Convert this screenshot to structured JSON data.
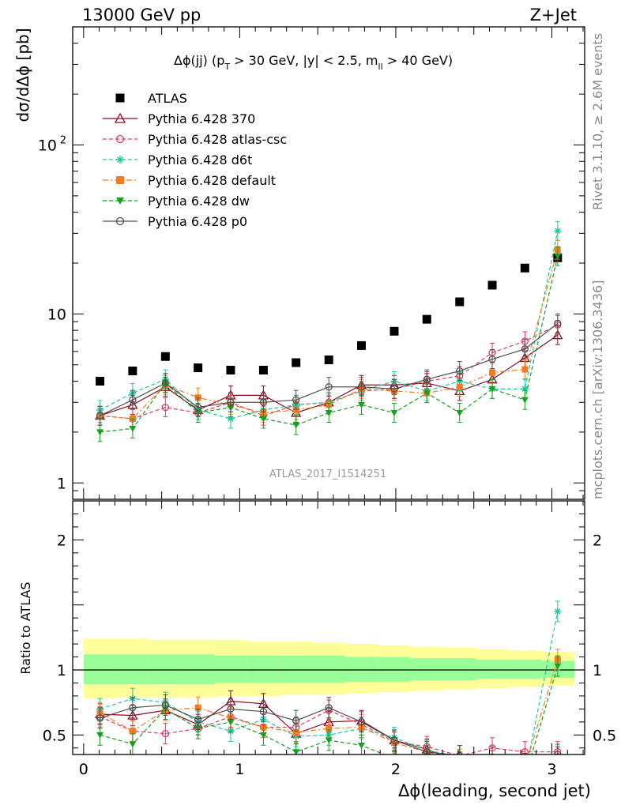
{
  "header": {
    "left": "13000 GeV pp",
    "right": "Z+Jet"
  },
  "side_text": {
    "rivet": "Rivet 3.1.10, ≥ 2.6M events",
    "mcplots": "mcplots.cern.ch [arXiv:1306.3436]"
  },
  "chart_data": {
    "type": "scatter",
    "title_parts": {
      "a": "Δϕ(jj) (p",
      "a_sub": "T",
      "b": " > 30 GeV, |y| < 2.5, m",
      "b_sub": "ll",
      "c": " > 40 GeV)"
    },
    "watermark": "ATLAS_2017_I1514251",
    "xlabel": "Δϕ(leading, second jet)",
    "ylabel_main": "dσ/dΔϕ [pb]",
    "ylabel_ratio": "Ratio to ATLAS",
    "xlim": [
      -0.07,
      3.21
    ],
    "ylim_main": [
      0.8,
      500
    ],
    "ylim_ratio": [
      0.35,
      2.3
    ],
    "log_y_main": true,
    "x_ticks": [
      "0",
      "1",
      "2",
      "3"
    ],
    "y_ticks_main": [
      {
        "value": 1,
        "label": "1"
      },
      {
        "value": 10,
        "label": "10"
      },
      {
        "value": 100,
        "label": "10",
        "sup": "2"
      }
    ],
    "y_ticks_ratio": [
      {
        "value": 0.5,
        "label": "0.5"
      },
      {
        "value": 1,
        "label": "1"
      },
      {
        "value": 2,
        "label": "2"
      }
    ],
    "x": [
      0.105,
      0.314,
      0.524,
      0.733,
      0.942,
      1.152,
      1.361,
      1.571,
      1.78,
      1.99,
      2.199,
      2.409,
      2.618,
      2.827,
      3.037
    ],
    "bin_edges": [
      0,
      0.209,
      0.419,
      0.628,
      0.838,
      1.047,
      1.257,
      1.466,
      1.676,
      1.885,
      2.094,
      2.304,
      2.513,
      2.723,
      2.932,
      3.1416
    ],
    "legend": [
      {
        "label": "ATLAS",
        "series": 0
      },
      {
        "label": "Pythia 6.428 370",
        "series": 1
      },
      {
        "label": "Pythia 6.428 atlas-csc",
        "series": 2
      },
      {
        "label": "Pythia 6.428 d6t",
        "series": 3
      },
      {
        "label": "Pythia 6.428 default",
        "series": 4
      },
      {
        "label": "Pythia 6.428 dw",
        "series": 5
      },
      {
        "label": "Pythia 6.428 p0",
        "series": 6
      }
    ],
    "series": [
      {
        "name": "ATLAS",
        "color": "#000000",
        "marker": "square",
        "line": "none",
        "values": [
          4.0,
          4.6,
          5.6,
          4.8,
          4.65,
          4.65,
          5.15,
          5.35,
          6.5,
          7.9,
          9.3,
          11.8,
          14.8,
          18.7,
          21.5
        ],
        "ratio": [
          1,
          1,
          1,
          1,
          1,
          1,
          1,
          1,
          1,
          1,
          1,
          1,
          1,
          1,
          1
        ]
      },
      {
        "name": "Pythia 6.428 370",
        "color": "#8b0a1e",
        "marker": "triangle-open",
        "line": "solid",
        "values": [
          2.5,
          2.9,
          3.7,
          2.7,
          3.3,
          3.3,
          2.6,
          3.0,
          3.8,
          3.8,
          3.9,
          3.5,
          4.1,
          5.5,
          7.5
        ],
        "ratio": [
          0.66,
          0.65,
          0.69,
          0.58,
          0.76,
          0.74,
          0.51,
          0.6,
          0.61,
          0.46,
          0.39,
          0.29,
          0.26,
          0.28,
          0.33
        ]
      },
      {
        "name": "Pythia 6.428 atlas-csc",
        "color": "#e8385f",
        "marker": "circle-open",
        "line": "dashed",
        "values": [
          2.5,
          2.4,
          2.8,
          2.6,
          3.0,
          2.5,
          2.9,
          3.0,
          3.5,
          3.6,
          4.0,
          4.3,
          5.9,
          6.9,
          8.6
        ],
        "ratio": [
          0.64,
          0.53,
          0.51,
          0.55,
          0.64,
          0.56,
          0.56,
          0.69,
          0.58,
          0.45,
          0.41,
          0.34,
          0.4,
          0.37,
          0.37
        ]
      },
      {
        "name": "Pythia 6.428 d6t",
        "color": "#1ec8a0",
        "marker": "star",
        "line": "dashed",
        "values": [
          2.7,
          3.4,
          4.1,
          2.7,
          2.4,
          2.7,
          2.9,
          3.0,
          3.5,
          4.0,
          3.5,
          4.0,
          3.6,
          3.6,
          31.0
        ],
        "ratio": [
          0.7,
          0.78,
          0.75,
          0.6,
          0.53,
          0.62,
          0.49,
          0.5,
          0.55,
          0.48,
          0.38,
          0.34,
          0.24,
          0.19,
          1.45
        ]
      },
      {
        "name": "Pythia 6.428 default",
        "color": "#f47c20",
        "marker": "square",
        "line": "dashdot",
        "values": [
          2.5,
          2.4,
          3.8,
          3.2,
          2.9,
          2.6,
          2.7,
          2.9,
          3.6,
          3.5,
          3.4,
          3.7,
          4.5,
          4.7,
          24.0
        ],
        "ratio": [
          0.67,
          0.53,
          0.69,
          0.71,
          0.63,
          0.56,
          0.52,
          0.55,
          0.56,
          0.44,
          0.37,
          0.31,
          0.3,
          0.25,
          1.08
        ]
      },
      {
        "name": "Pythia 6.428 dw",
        "color": "#16a020",
        "marker": "triangle-down",
        "line": "dashed",
        "values": [
          2.0,
          2.1,
          3.9,
          2.6,
          2.8,
          2.4,
          2.2,
          2.6,
          2.9,
          2.6,
          3.4,
          2.6,
          3.6,
          3.1,
          22.0
        ],
        "ratio": [
          0.5,
          0.43,
          0.7,
          0.55,
          0.6,
          0.5,
          0.37,
          0.46,
          0.42,
          0.32,
          0.34,
          0.22,
          0.25,
          0.17,
          1.03
        ]
      },
      {
        "name": "Pythia 6.428 p0",
        "color": "#505050",
        "marker": "circle-open",
        "line": "solid",
        "values": [
          2.5,
          3.1,
          3.9,
          2.8,
          3.0,
          3.0,
          3.1,
          3.7,
          3.7,
          3.6,
          4.1,
          4.6,
          5.4,
          6.2,
          8.8
        ],
        "ratio": [
          0.63,
          0.71,
          0.73,
          0.62,
          0.7,
          0.68,
          0.61,
          0.71,
          0.6,
          0.46,
          0.37,
          0.34,
          0.33,
          0.26,
          0.35
        ]
      }
    ],
    "bands": {
      "yellow_color": "#ffff99",
      "green_color": "#99ff99",
      "yellow_lo": [
        0.78,
        0.79,
        0.79,
        0.79,
        0.8,
        0.8,
        0.81,
        0.81,
        0.82,
        0.83,
        0.84,
        0.85,
        0.86,
        0.87,
        0.88
      ],
      "yellow_hi": [
        1.24,
        1.24,
        1.23,
        1.23,
        1.23,
        1.22,
        1.22,
        1.21,
        1.2,
        1.19,
        1.18,
        1.17,
        1.16,
        1.15,
        1.14
      ],
      "green_lo": [
        0.89,
        0.89,
        0.89,
        0.89,
        0.9,
        0.9,
        0.9,
        0.9,
        0.91,
        0.91,
        0.92,
        0.92,
        0.93,
        0.93,
        0.94
      ],
      "green_hi": [
        1.12,
        1.12,
        1.12,
        1.12,
        1.11,
        1.11,
        1.11,
        1.11,
        1.1,
        1.1,
        1.09,
        1.09,
        1.08,
        1.08,
        1.07
      ]
    }
  }
}
